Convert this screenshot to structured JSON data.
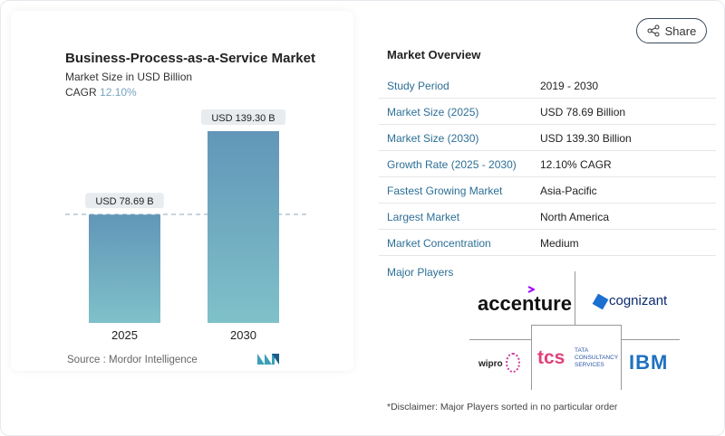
{
  "chart_data": {
    "type": "bar",
    "title": "Business-Process-as-a-Service Market",
    "subtitle": "Market Size in USD Billion",
    "cagr_label": "CAGR",
    "cagr_value": "12.10%",
    "categories": [
      "2025",
      "2030"
    ],
    "values": [
      78.69,
      139.3
    ],
    "data_labels": [
      "USD 78.69 B",
      "USD 139.30 B"
    ],
    "ylim": [
      0,
      150
    ],
    "grid": false,
    "source": "Source :  Mordor Intelligence"
  },
  "share_label": "Share",
  "overview": {
    "title": "Market Overview",
    "rows": [
      {
        "label": "Study Period",
        "value": "2019 - 2030"
      },
      {
        "label": "Market Size (2025)",
        "value": "USD 78.69 Billion"
      },
      {
        "label": "Market Size (2030)",
        "value": "USD 139.30 Billion"
      },
      {
        "label": "Growth Rate (2025 - 2030)",
        "value": "12.10% CAGR"
      },
      {
        "label": "Fastest Growing Market",
        "value": "Asia-Pacific"
      },
      {
        "label": "Largest Market",
        "value": "North America"
      },
      {
        "label": "Market Concentration",
        "value": "Medium"
      }
    ],
    "major_players_label": "Major Players",
    "players": [
      "accenture",
      "cognizant",
      "wipro",
      "TATA CONSULTANCY SERVICES",
      "IBM"
    ],
    "disclaimer": "*Disclaimer: Major Players sorted in no particular order"
  },
  "colors": {
    "bar_top": "#6196b8",
    "bar_bottom": "#7fc1c9",
    "label": "#2d6f96"
  }
}
